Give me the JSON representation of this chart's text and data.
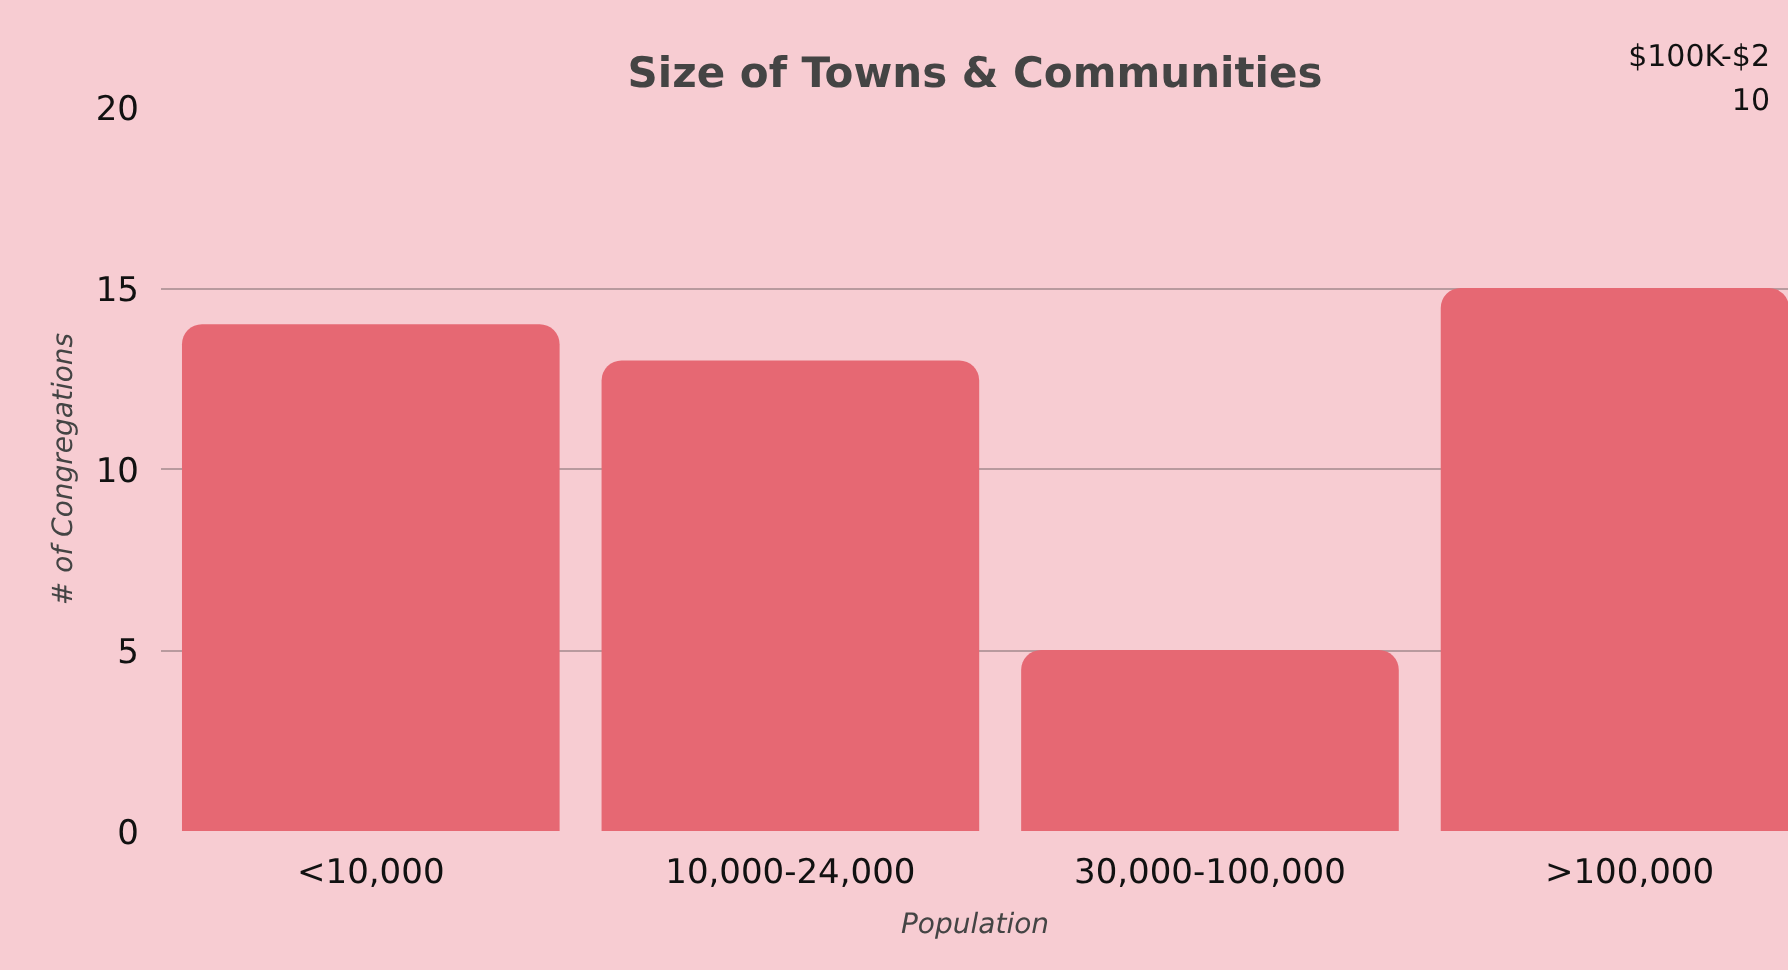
{
  "chart_data": {
    "type": "bar",
    "title": "Size of Towns & Communities",
    "xlabel": "Population",
    "ylabel": "# of Congregations",
    "categories": [
      "<10,000",
      "10,000-24,000",
      "30,000-100,000",
      ">100,000"
    ],
    "values": [
      14,
      13,
      5,
      15
    ],
    "color": "#e66873",
    "ylim": [
      0,
      20
    ],
    "yticks": [
      0,
      5,
      10,
      15,
      20
    ],
    "grid": "y",
    "annotations": [
      "$100K-$2",
      "10"
    ]
  }
}
